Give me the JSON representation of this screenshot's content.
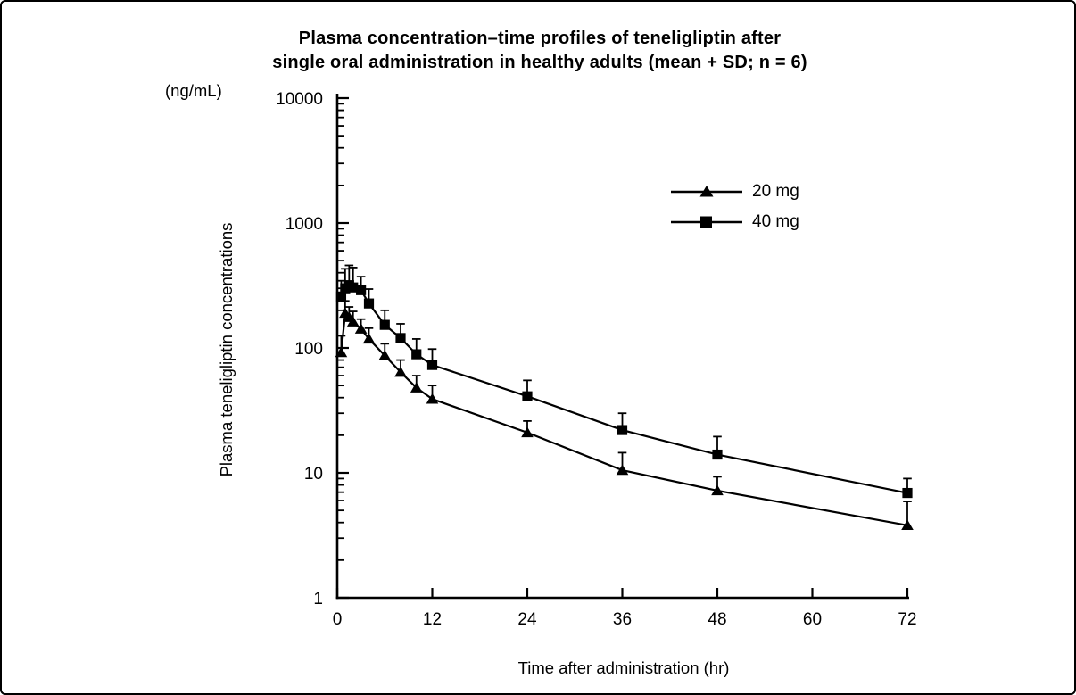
{
  "figure": {
    "title_line1": "Plasma concentration–time profiles of teneligliptin after",
    "title_line2": "single oral administration in healthy adults (mean + SD; n = 6)",
    "background_color": "#ffffff",
    "foreground_color": "#000000"
  },
  "chart_data": {
    "type": "line",
    "title": "Plasma concentration–time profiles of teneligliptin after single oral administration in healthy adults (mean + SD; n = 6)",
    "xlabel": "Time after administration (hr)",
    "ylabel": "Plasma teneligliptin concentrations",
    "y_unit": "(ng/mL)",
    "y_scale": "log",
    "ylim": [
      1,
      10000
    ],
    "xlim": [
      0,
      72
    ],
    "x_ticks": [
      0,
      12,
      24,
      36,
      48,
      60,
      72
    ],
    "y_ticks": [
      1,
      10,
      100,
      1000,
      10000
    ],
    "grid": false,
    "legend_position": "upper right inside",
    "error_bars": "mean + SD, upward whiskers with caps",
    "x": [
      0.5,
      1,
      1.5,
      2,
      3,
      4,
      6,
      8,
      10,
      12,
      24,
      36,
      48,
      72
    ],
    "series": [
      {
        "name": "20 mg",
        "marker": "triangle",
        "color": "#000000",
        "values": [
          92,
          190,
          176,
          162,
          142,
          118,
          87,
          64,
          48,
          39,
          21,
          10.5,
          7.2,
          3.8
        ],
        "sd_upper": [
          125,
          238,
          213,
          196,
          170,
          144,
          108,
          80,
          60,
          50,
          26,
          14.5,
          9.3,
          5.9
        ]
      },
      {
        "name": "40 mg",
        "marker": "square",
        "color": "#000000",
        "values": [
          258,
          300,
          318,
          305,
          290,
          227,
          153,
          120,
          89,
          73,
          41,
          22,
          14,
          6.9
        ],
        "sd_upper": [
          345,
          430,
          458,
          440,
          372,
          296,
          200,
          156,
          118,
          98,
          55,
          30,
          19.5,
          9.0
        ]
      }
    ]
  }
}
